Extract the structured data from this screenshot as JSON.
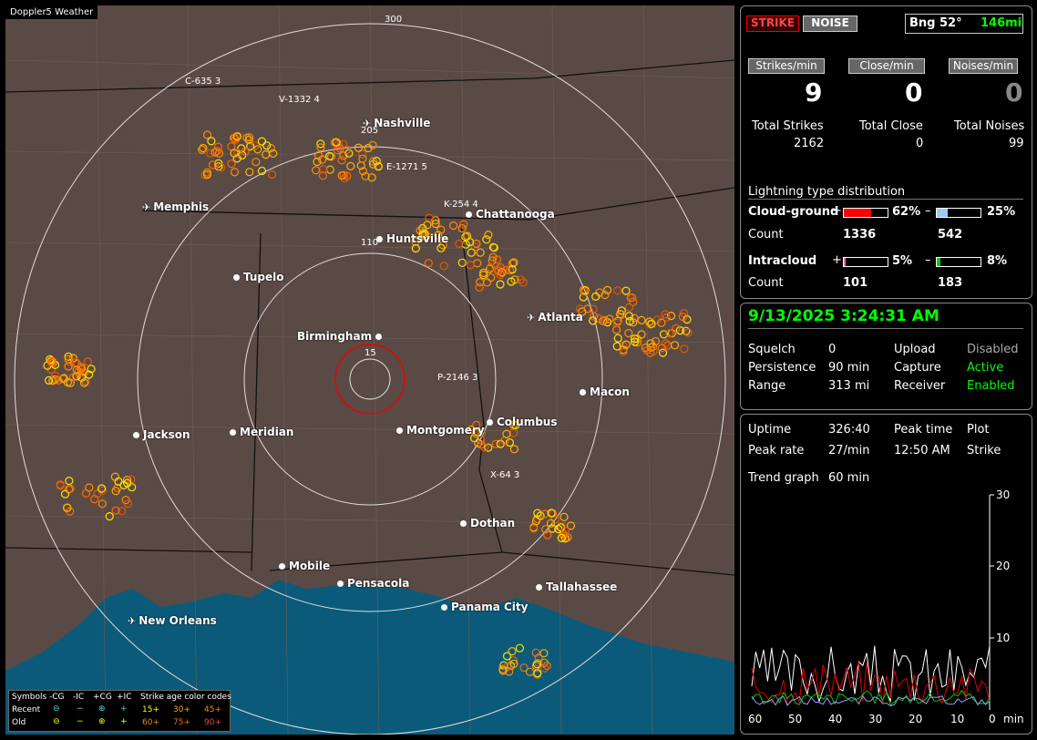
{
  "map": {
    "app_tag": "Doppler5 Weather",
    "range_labels": [
      "300",
      "205",
      "110",
      "15"
    ],
    "cities": [
      {
        "name": "Nashville",
        "kind": "airport"
      },
      {
        "name": "Memphis",
        "kind": "airport"
      },
      {
        "name": "Chattanooga",
        "kind": "dot"
      },
      {
        "name": "Huntsville",
        "kind": "dot"
      },
      {
        "name": "Tupelo",
        "kind": "dot"
      },
      {
        "name": "Atlanta",
        "kind": "airport"
      },
      {
        "name": "Birmingham",
        "kind": "dot"
      },
      {
        "name": "Macon",
        "kind": "dot"
      },
      {
        "name": "Columbus",
        "kind": "dot"
      },
      {
        "name": "Jackson",
        "kind": "dot"
      },
      {
        "name": "Meridian",
        "kind": "dot"
      },
      {
        "name": "Montgomery",
        "kind": "dot"
      },
      {
        "name": "Dothan",
        "kind": "dot"
      },
      {
        "name": "Mobile",
        "kind": "dot"
      },
      {
        "name": "Pensacola",
        "kind": "dot"
      },
      {
        "name": "Tallahassee",
        "kind": "dot"
      },
      {
        "name": "Panama City",
        "kind": "dot"
      },
      {
        "name": "New Orleans",
        "kind": "airport"
      }
    ],
    "storm_labels": [
      "C-635 3",
      "V-1332 4",
      "E-1271 5",
      "K-254 4",
      "P-2146 3",
      "X-64 3"
    ],
    "legend": {
      "symbols_label": "Symbols",
      "headers": [
        "-CG",
        "-IC",
        "+CG",
        "+IC"
      ],
      "age_title": "Strike age color codes",
      "recent_label": "Recent",
      "old_label": "Old",
      "recent_ages": [
        "15+",
        "30+",
        "45+"
      ],
      "old_ages": [
        "60+",
        "75+",
        "90+"
      ],
      "recent_glyphs": [
        "⊖",
        "−",
        "⊕",
        "+"
      ],
      "old_glyphs": [
        "⊖",
        "−",
        "⊕",
        "+"
      ]
    }
  },
  "mode": {
    "strike": "STRIKE",
    "noise": "NOISE",
    "bearing": "Bng 52°",
    "distance": "146mi"
  },
  "rates": {
    "strikes_label": "Strikes/min",
    "strikes_value": "9",
    "close_label": "Close/min",
    "close_value": "0",
    "noises_label": "Noises/min",
    "noises_value": "0"
  },
  "totals": {
    "strikes_label": "Total Strikes",
    "strikes_value": "2162",
    "close_label": "Total Close",
    "close_value": "0",
    "noises_label": "Total Noises",
    "noises_value": "99"
  },
  "distribution": {
    "title": "Lightning type distribution",
    "cg_label": "Cloud-ground",
    "cg_plus_pct": "62%",
    "cg_minus_pct": "25%",
    "count_label": "Count",
    "cg_plus_count": "1336",
    "cg_minus_count": "542",
    "ic_label": "Intracloud",
    "ic_plus_pct": "5%",
    "ic_minus_pct": "8%",
    "ic_plus_count": "101",
    "ic_minus_count": "183",
    "plus_sign": "+",
    "minus_sign": "–",
    "cg_plus_fill": 0.62,
    "cg_minus_fill": 0.25,
    "ic_plus_fill": 0.05,
    "ic_minus_fill": 0.08
  },
  "status": {
    "datetime": "9/13/2025 3:24:31 AM",
    "squelch_label": "Squelch",
    "squelch_value": "0",
    "persistence_label": "Persistence",
    "persistence_value": "90 min",
    "range_label": "Range",
    "range_value": "313 mi",
    "upload_label": "Upload",
    "upload_value": "Disabled",
    "capture_label": "Capture",
    "capture_value": "Active",
    "receiver_label": "Receiver",
    "receiver_value": "Enabled"
  },
  "trend": {
    "uptime_label": "Uptime",
    "uptime_value": "326:40",
    "peaktime_label": "Peak time",
    "peaktime_value": "12:50 AM",
    "plot_label": "Plot",
    "plot_value": "Strike",
    "peakrate_label": "Peak rate",
    "peakrate_value": "27/min",
    "graph_label": "Trend graph",
    "graph_value": "60 min",
    "y_ticks": [
      "30",
      "20",
      "10"
    ],
    "x_ticks": [
      "60",
      "50",
      "40",
      "30",
      "20",
      "10",
      "0"
    ],
    "x_unit": "min"
  },
  "colors": {
    "accent_green": "#00ff00",
    "strike_red": "#cc0000",
    "cg_plus": "#ff0000",
    "cg_minus": "#99ccff",
    "ic_plus": "#ff66aa",
    "ic_minus": "#00cc00"
  }
}
